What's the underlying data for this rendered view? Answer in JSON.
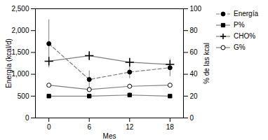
{
  "chart_data": {
    "type": "line",
    "xlabel": "Mes",
    "ylabel": "Energía (kcal/d)",
    "y2label": "% de las kcal",
    "x": [
      0,
      6,
      12,
      18
    ],
    "xlim": [
      -2,
      20
    ],
    "xticks": [
      0,
      6,
      12,
      18
    ],
    "ylim": [
      0,
      2500
    ],
    "yticks": [
      0,
      500,
      1000,
      1500,
      2000,
      2500
    ],
    "y2lim": [
      0,
      100
    ],
    "y2ticks": [
      0,
      20,
      40,
      60,
      80,
      100
    ],
    "grid": false,
    "legend": "right",
    "series": [
      {
        "name": "Energía",
        "axis": "y",
        "color": "gray",
        "line_style": "dashed",
        "marker": "circle",
        "values": [
          1700,
          880,
          1050,
          1150
        ],
        "errors": [
          550,
          200,
          150,
          200
        ]
      },
      {
        "name": "P%",
        "axis": "y2",
        "color": "gray",
        "line_style": "solid",
        "marker": "square",
        "values": [
          20,
          20,
          21,
          20
        ],
        "errors": [
          0,
          0,
          2,
          0
        ]
      },
      {
        "name": "CHO%",
        "axis": "y2",
        "color": "gray",
        "line_style": "solid",
        "marker": "plus",
        "values": [
          52,
          57,
          51,
          49
        ],
        "errors": [
          0,
          4,
          3,
          0
        ]
      },
      {
        "name": "G%",
        "axis": "y2",
        "color": "gray",
        "line_style": "solid",
        "marker": "open_circle",
        "values": [
          30,
          26,
          29,
          30
        ],
        "errors": [
          0,
          0,
          2,
          2
        ]
      }
    ]
  }
}
